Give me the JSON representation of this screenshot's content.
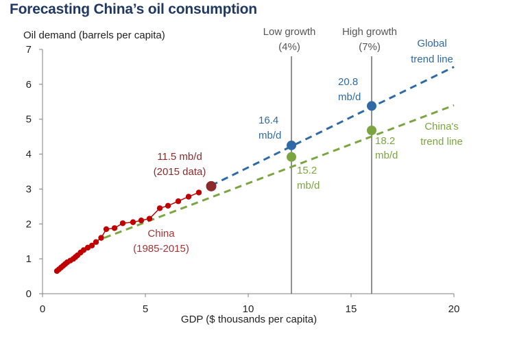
{
  "title": "Forecasting China’s oil consumption",
  "colors": {
    "china": "#c00000",
    "china_label": "#a53434",
    "dark_red": "#8b2a2a",
    "global": "#2e6aa6",
    "china_trend": "#7aa540",
    "gray_line": "#6b6b6b",
    "title": "#1f3864"
  },
  "chart_data": {
    "type": "scatter",
    "title": "Forecasting China’s oil consumption",
    "xlabel": "GDP ($ thousands per capita)",
    "ylabel": "Oil demand (barrels per capita)",
    "xlim": [
      0,
      20
    ],
    "ylim": [
      0,
      7
    ],
    "x_ticks": [
      0,
      5,
      10,
      15,
      20
    ],
    "y_ticks": [
      0,
      1,
      2,
      3,
      4,
      5,
      6,
      7
    ],
    "china_points": [
      [
        0.7,
        0.65
      ],
      [
        0.8,
        0.7
      ],
      [
        0.9,
        0.75
      ],
      [
        1.0,
        0.8
      ],
      [
        1.1,
        0.85
      ],
      [
        1.2,
        0.9
      ],
      [
        1.35,
        0.95
      ],
      [
        1.5,
        1.0
      ],
      [
        1.6,
        1.05
      ],
      [
        1.7,
        1.1
      ],
      [
        1.85,
        1.18
      ],
      [
        2.0,
        1.25
      ],
      [
        2.2,
        1.32
      ],
      [
        2.4,
        1.38
      ],
      [
        2.6,
        1.48
      ],
      [
        2.85,
        1.6
      ],
      [
        3.1,
        1.85
      ],
      [
        3.5,
        1.88
      ],
      [
        3.9,
        2.02
      ],
      [
        4.4,
        2.05
      ],
      [
        4.8,
        2.1
      ],
      [
        5.2,
        2.15
      ],
      [
        5.7,
        2.45
      ],
      [
        6.1,
        2.52
      ],
      [
        6.6,
        2.65
      ],
      [
        7.1,
        2.78
      ],
      [
        7.6,
        2.9
      ]
    ],
    "china_2015": {
      "x": 8.2,
      "y": 3.08,
      "label_line1": "11.5 mb/d",
      "label_line2": "(2015 data)"
    },
    "china_label": {
      "line1": "China",
      "line2": "(1985-2015)"
    },
    "global_trend": {
      "x": [
        8.2,
        20
      ],
      "y": [
        3.1,
        6.5
      ],
      "label_line1": "Global",
      "label_line2": "trend line"
    },
    "china_trend": {
      "x": [
        3.0,
        20
      ],
      "y": [
        1.6,
        5.4
      ],
      "label_line1": "China's",
      "label_line2": "trend line"
    },
    "scenarios": [
      {
        "x": 12.1,
        "label_line1": "Low growth",
        "label_line2": "(4%)",
        "global_y": 4.25,
        "global_label1": "16.4",
        "global_label2": "mb/d",
        "china_y": 3.92,
        "china_label1": "15.2",
        "china_label2": "mb/d"
      },
      {
        "x": 16.0,
        "label_line1": "High growth",
        "label_line2": "(7%)",
        "global_y": 5.38,
        "global_label1": "20.8",
        "global_label2": "mb/d",
        "china_y": 4.68,
        "china_label1": "18.2",
        "china_label2": "mb/d"
      }
    ]
  }
}
